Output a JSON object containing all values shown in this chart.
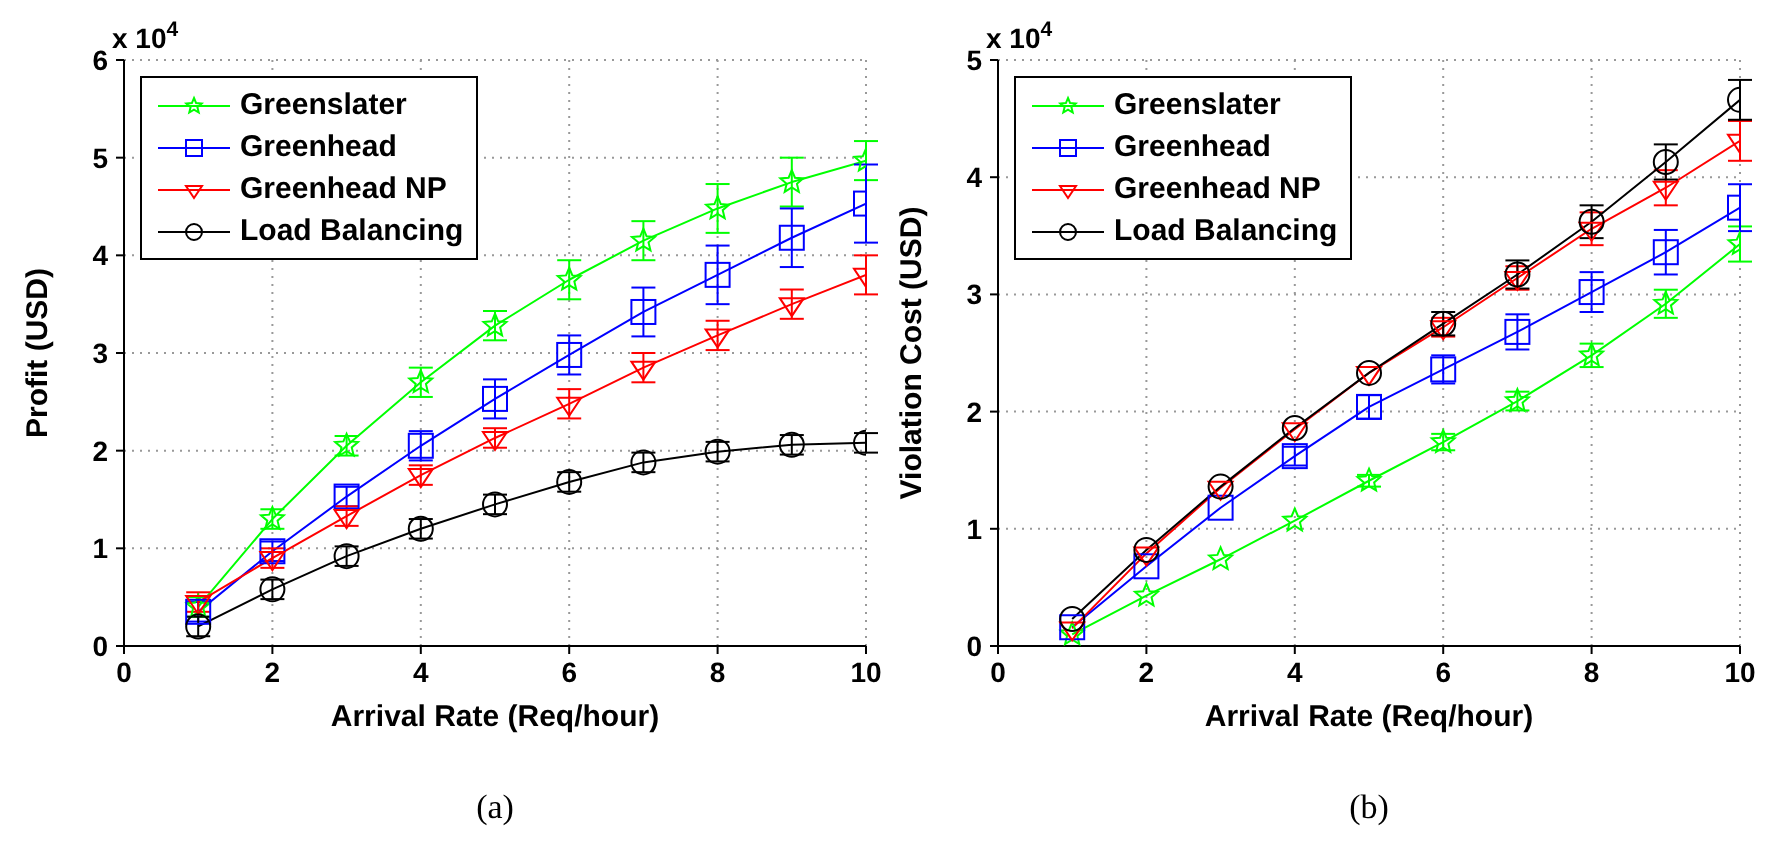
{
  "chart_data": [
    {
      "type": "line",
      "xlabel": "Arrival Rate (Req/hour)",
      "ylabel": "Profit (USD)",
      "annotations": [
        "x 10$^{4}$",
        "(a)"
      ],
      "x": [
        1,
        2,
        3,
        4,
        5,
        6,
        7,
        8,
        9,
        10
      ],
      "xlim": [
        0,
        10
      ],
      "xticks": [
        0,
        2,
        4,
        6,
        8,
        10
      ],
      "ylim": [
        0,
        6
      ],
      "yticks": [
        0,
        1,
        2,
        3,
        4,
        5,
        6
      ],
      "grid": true,
      "legend": "top left",
      "line_style": "solid",
      "series": [
        {
          "name": "Greenslater",
          "color": "#00ff00",
          "marker": "star",
          "values": [
            0.4,
            1.3,
            2.05,
            2.7,
            3.28,
            3.75,
            4.15,
            4.48,
            4.75,
            4.97
          ],
          "errors": [
            0.1,
            0.1,
            0.1,
            0.15,
            0.15,
            0.2,
            0.2,
            0.25,
            0.25,
            0.2
          ]
        },
        {
          "name": "Greenhead",
          "color": "#0000ff",
          "marker": "square",
          "values": [
            0.35,
            0.97,
            1.53,
            2.05,
            2.53,
            2.98,
            3.42,
            3.8,
            4.18,
            4.53
          ],
          "errors": [
            0.1,
            0.1,
            0.1,
            0.15,
            0.2,
            0.2,
            0.25,
            0.3,
            0.3,
            0.4
          ]
        },
        {
          "name": "Greenhead NP",
          "color": "#ff0000",
          "marker": "triangle",
          "values": [
            0.45,
            0.9,
            1.33,
            1.75,
            2.13,
            2.48,
            2.85,
            3.18,
            3.5,
            3.8
          ],
          "errors": [
            0.1,
            0.1,
            0.1,
            0.1,
            0.1,
            0.15,
            0.15,
            0.15,
            0.15,
            0.2
          ]
        },
        {
          "name": "Load Balancing",
          "color": "#000000",
          "marker": "circle",
          "values": [
            0.2,
            0.58,
            0.92,
            1.2,
            1.45,
            1.68,
            1.88,
            1.99,
            2.06,
            2.08
          ],
          "errors": [
            0.1,
            0.1,
            0.1,
            0.1,
            0.1,
            0.1,
            0.1,
            0.1,
            0.1,
            0.1
          ]
        }
      ]
    },
    {
      "type": "line",
      "xlabel": "Arrival Rate (Req/hour)",
      "ylabel": "Violation Cost (USD)",
      "annotations": [
        "x 10$^{4}$",
        "(b)"
      ],
      "x": [
        1,
        2,
        3,
        4,
        5,
        6,
        7,
        8,
        9,
        10
      ],
      "xlim": [
        0,
        10
      ],
      "xticks": [
        0,
        2,
        4,
        6,
        8,
        10
      ],
      "ylim": [
        0,
        5
      ],
      "yticks": [
        0,
        1,
        2,
        3,
        4,
        5
      ],
      "grid": true,
      "legend": "top left",
      "line_style": "solid",
      "series": [
        {
          "name": "Greenslater",
          "color": "#00ff00",
          "marker": "star",
          "values": [
            0.1,
            0.43,
            0.74,
            1.07,
            1.41,
            1.74,
            2.09,
            2.48,
            2.92,
            3.43
          ],
          "errors": [
            null,
            null,
            null,
            null,
            0.05,
            0.07,
            0.08,
            0.1,
            0.12,
            0.15
          ]
        },
        {
          "name": "Greenhead",
          "color": "#0000ff",
          "marker": "square",
          "values": [
            0.16,
            0.68,
            1.18,
            1.62,
            2.04,
            2.36,
            2.68,
            3.02,
            3.36,
            3.74
          ],
          "errors": [
            null,
            null,
            null,
            0.08,
            0.1,
            0.12,
            0.15,
            0.17,
            0.19,
            0.2
          ]
        },
        {
          "name": "Greenhead NP",
          "color": "#ff0000",
          "marker": "triangle",
          "values": [
            0.15,
            0.79,
            1.35,
            1.85,
            2.33,
            2.72,
            3.14,
            3.56,
            3.91,
            4.31
          ],
          "errors": [
            null,
            null,
            null,
            null,
            null,
            0.08,
            0.1,
            0.14,
            0.15,
            0.17
          ]
        },
        {
          "name": "Load Balancing",
          "color": "#000000",
          "marker": "circle",
          "values": [
            0.23,
            0.82,
            1.36,
            1.86,
            2.33,
            2.75,
            3.17,
            3.62,
            4.13,
            4.66
          ],
          "errors": [
            null,
            null,
            null,
            null,
            null,
            0.1,
            0.12,
            0.14,
            0.15,
            0.17
          ]
        }
      ]
    }
  ]
}
